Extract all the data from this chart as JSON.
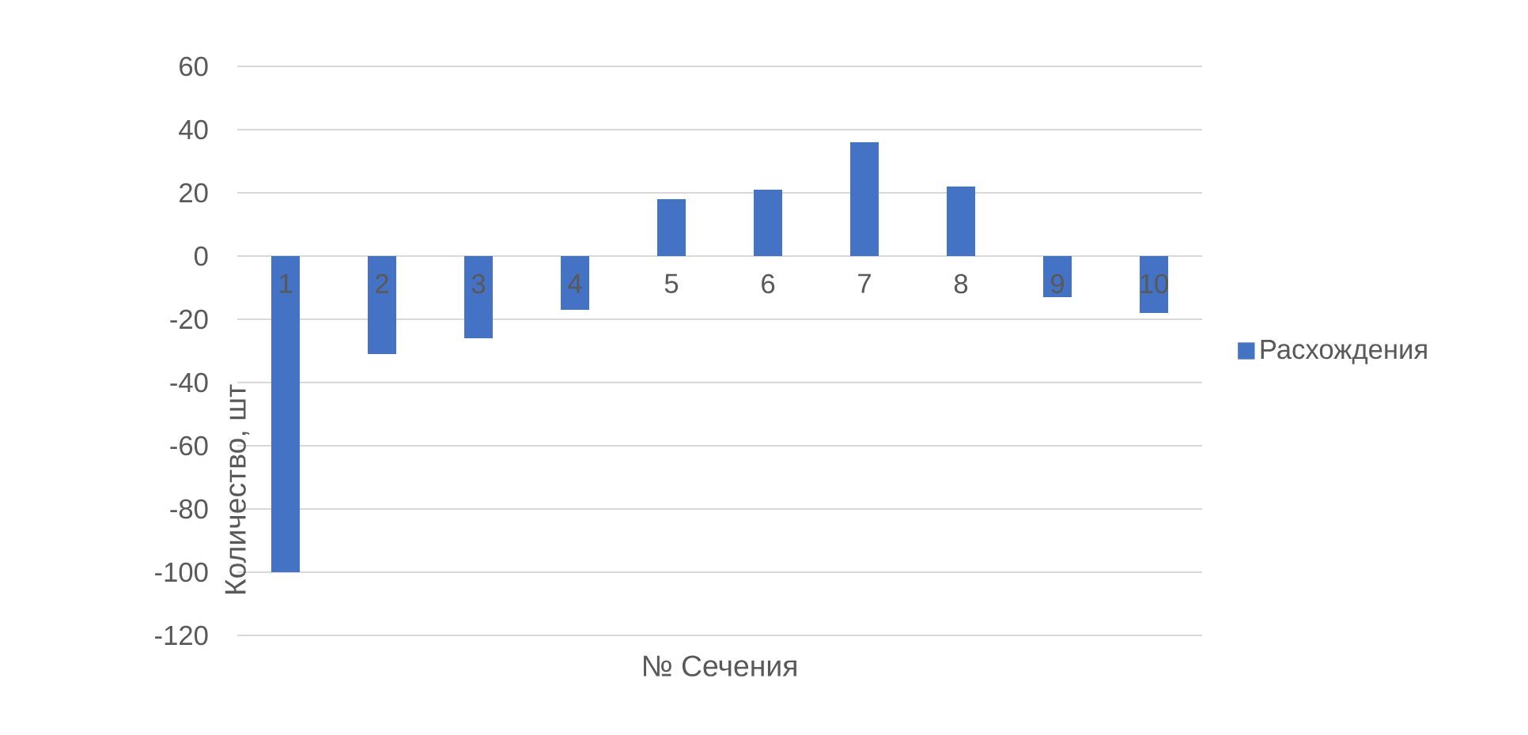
{
  "chart_data": {
    "type": "bar",
    "xlabel": "№ Сечения",
    "ylabel": "Количество, шт",
    "categories": [
      "1",
      "2",
      "3",
      "4",
      "5",
      "6",
      "7",
      "8",
      "9",
      "10"
    ],
    "series": [
      {
        "name": "Расхождения",
        "color": "#4472c4",
        "values": [
          -100,
          -31,
          -26,
          -17,
          18,
          21,
          36,
          22,
          -13,
          -18
        ]
      }
    ],
    "ylim": [
      -120,
      60
    ],
    "yticks": [
      -120,
      -100,
      -80,
      -60,
      -40,
      -20,
      0,
      20,
      40,
      60
    ],
    "grid": "y",
    "legend": "right"
  }
}
